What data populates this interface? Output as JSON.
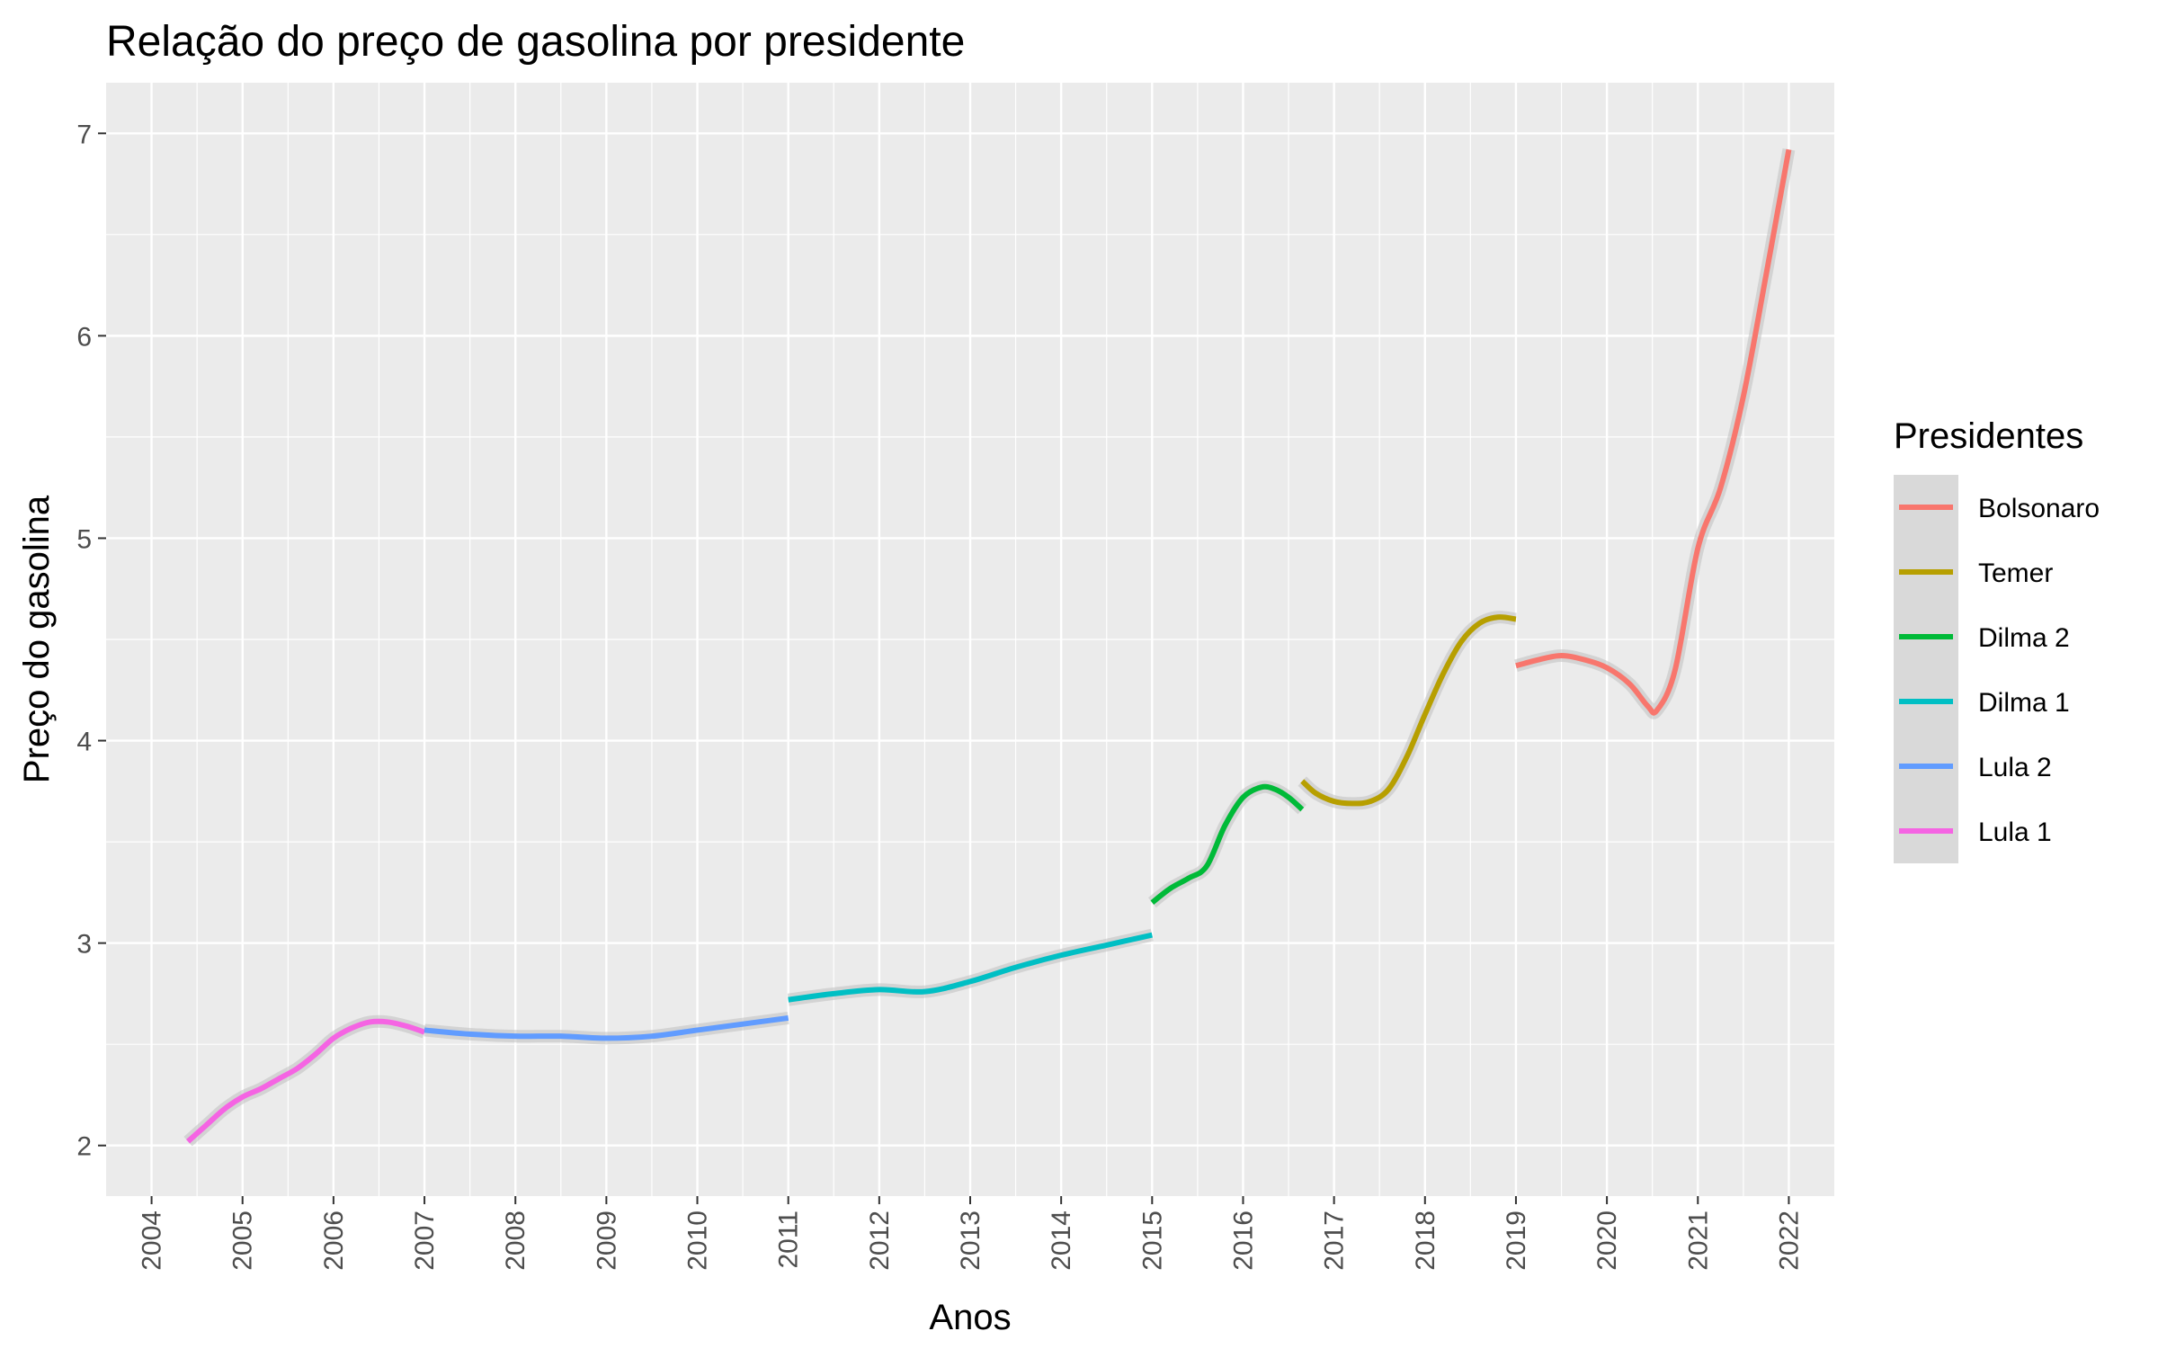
{
  "chart_data": {
    "type": "line",
    "title": "Relação do preço de gasolina por presidente",
    "xlabel": "Anos",
    "ylabel": "Preço do gasolina",
    "xlim": [
      2003.5,
      2022.5
    ],
    "ylim": [
      1.75,
      7.25
    ],
    "x_ticks": [
      "2004",
      "2005",
      "2006",
      "2007",
      "2008",
      "2009",
      "2010",
      "2011",
      "2012",
      "2013",
      "2014",
      "2015",
      "2016",
      "2017",
      "2018",
      "2019",
      "2020",
      "2021",
      "2022"
    ],
    "y_ticks": [
      "2",
      "3",
      "4",
      "5",
      "6",
      "7"
    ],
    "grid": true,
    "legend_title": "Presidentes",
    "legend_position": "right",
    "series": [
      {
        "name": "Bolsonaro",
        "color": "#F8766D",
        "x": [
          2019.0,
          2019.25,
          2019.5,
          2019.75,
          2020.0,
          2020.25,
          2020.45,
          2020.55,
          2020.75,
          2021.0,
          2021.25,
          2021.5,
          2021.75,
          2022.0
        ],
        "y": [
          4.37,
          4.4,
          4.42,
          4.4,
          4.36,
          4.28,
          4.17,
          4.15,
          4.35,
          4.95,
          5.25,
          5.7,
          6.3,
          6.92
        ]
      },
      {
        "name": "Temer",
        "color": "#B79F00",
        "x": [
          2016.65,
          2016.8,
          2017.0,
          2017.2,
          2017.4,
          2017.6,
          2017.8,
          2018.0,
          2018.2,
          2018.4,
          2018.6,
          2018.8,
          2019.0
        ],
        "y": [
          3.8,
          3.74,
          3.7,
          3.69,
          3.7,
          3.76,
          3.92,
          4.13,
          4.33,
          4.49,
          4.58,
          4.61,
          4.6
        ]
      },
      {
        "name": "Dilma 2",
        "color": "#00BA38",
        "x": [
          2015.0,
          2015.2,
          2015.4,
          2015.6,
          2015.8,
          2016.0,
          2016.2,
          2016.35,
          2016.5,
          2016.65
        ],
        "y": [
          3.2,
          3.27,
          3.32,
          3.38,
          3.58,
          3.72,
          3.77,
          3.76,
          3.72,
          3.66
        ]
      },
      {
        "name": "Dilma 1",
        "color": "#00BFC4",
        "x": [
          2011.0,
          2011.5,
          2012.0,
          2012.5,
          2013.0,
          2013.5,
          2014.0,
          2014.5,
          2015.0
        ],
        "y": [
          2.72,
          2.75,
          2.77,
          2.76,
          2.81,
          2.88,
          2.94,
          2.99,
          3.04
        ]
      },
      {
        "name": "Lula 2",
        "color": "#619CFF",
        "x": [
          2007.0,
          2007.5,
          2008.0,
          2008.5,
          2009.0,
          2009.5,
          2010.0,
          2010.5,
          2011.0
        ],
        "y": [
          2.57,
          2.55,
          2.54,
          2.54,
          2.53,
          2.54,
          2.57,
          2.6,
          2.63
        ]
      },
      {
        "name": "Lula 1",
        "color": "#F564E3",
        "x": [
          2004.4,
          2004.6,
          2004.8,
          2005.0,
          2005.2,
          2005.4,
          2005.6,
          2005.8,
          2006.0,
          2006.2,
          2006.4,
          2006.6,
          2006.8,
          2007.0
        ],
        "y": [
          2.02,
          2.1,
          2.18,
          2.24,
          2.28,
          2.33,
          2.38,
          2.45,
          2.53,
          2.58,
          2.61,
          2.61,
          2.59,
          2.56
        ]
      }
    ]
  }
}
